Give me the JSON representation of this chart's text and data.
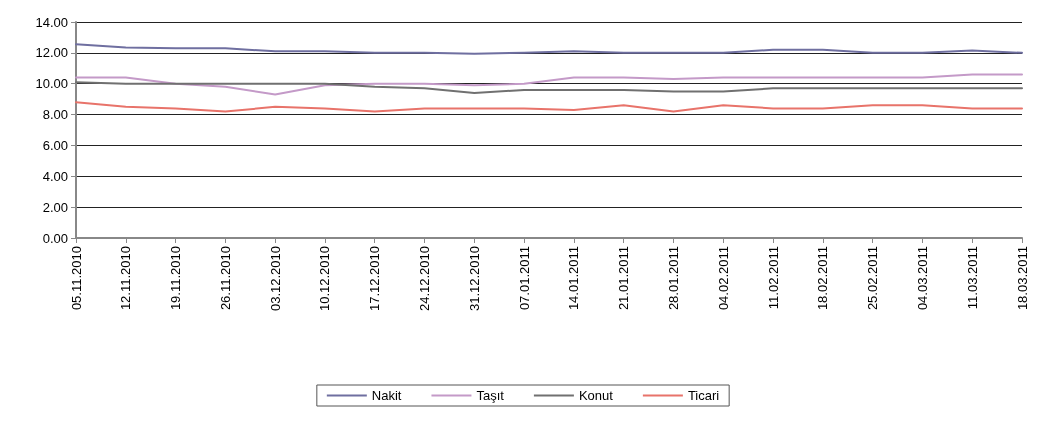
{
  "chart_data": {
    "type": "line",
    "categories": [
      "05.11.2010",
      "12.11.2010",
      "19.11.2010",
      "26.11.2010",
      "03.12.2010",
      "10.12.2010",
      "17.12.2010",
      "24.12.2010",
      "31.12.2010",
      "07.01.2011",
      "14.01.2011",
      "21.01.2011",
      "28.01.2011",
      "04.02.2011",
      "11.02.2011",
      "18.02.2011",
      "25.02.2011",
      "04.03.2011",
      "11.03.2011",
      "18.03.2011"
    ],
    "series": [
      {
        "name": "Nakit",
        "color": "#6f6fa0",
        "values": [
          12.55,
          12.35,
          12.3,
          12.3,
          12.1,
          12.1,
          12.0,
          12.0,
          11.95,
          12.0,
          12.1,
          12.0,
          12.0,
          12.0,
          12.2,
          12.2,
          12.0,
          12.0,
          12.15,
          12.0
        ]
      },
      {
        "name": "Taşıt",
        "color": "#c49ac8",
        "values": [
          10.4,
          10.4,
          10.0,
          9.8,
          9.3,
          9.9,
          10.0,
          10.0,
          9.9,
          10.0,
          10.4,
          10.4,
          10.3,
          10.4,
          10.4,
          10.4,
          10.4,
          10.4,
          10.6,
          10.6
        ]
      },
      {
        "name": "Konut",
        "color": "#707070",
        "values": [
          10.1,
          10.0,
          10.0,
          10.0,
          10.0,
          10.0,
          9.8,
          9.7,
          9.4,
          9.6,
          9.6,
          9.6,
          9.5,
          9.5,
          9.7,
          9.7,
          9.7,
          9.7,
          9.7,
          9.7
        ]
      },
      {
        "name": "Ticari",
        "color": "#e8736a",
        "values": [
          8.8,
          8.5,
          8.4,
          8.2,
          8.5,
          8.4,
          8.2,
          8.4,
          8.4,
          8.4,
          8.3,
          8.6,
          8.2,
          8.6,
          8.4,
          8.4,
          8.6,
          8.6,
          8.4,
          8.4
        ]
      }
    ],
    "ylim": [
      0,
      14
    ],
    "yticks": [
      {
        "value": 0,
        "label": "0.00"
      },
      {
        "value": 2,
        "label": "2.00"
      },
      {
        "value": 4,
        "label": "4.00"
      },
      {
        "value": 6,
        "label": "6.00"
      },
      {
        "value": 8,
        "label": "8.00"
      },
      {
        "value": 10,
        "label": "10.00"
      },
      {
        "value": 12,
        "label": "12.00"
      },
      {
        "value": 14,
        "label": "14.00"
      }
    ],
    "grid": "y",
    "legend": "bottom",
    "marker": "none",
    "line_style": "solid"
  }
}
